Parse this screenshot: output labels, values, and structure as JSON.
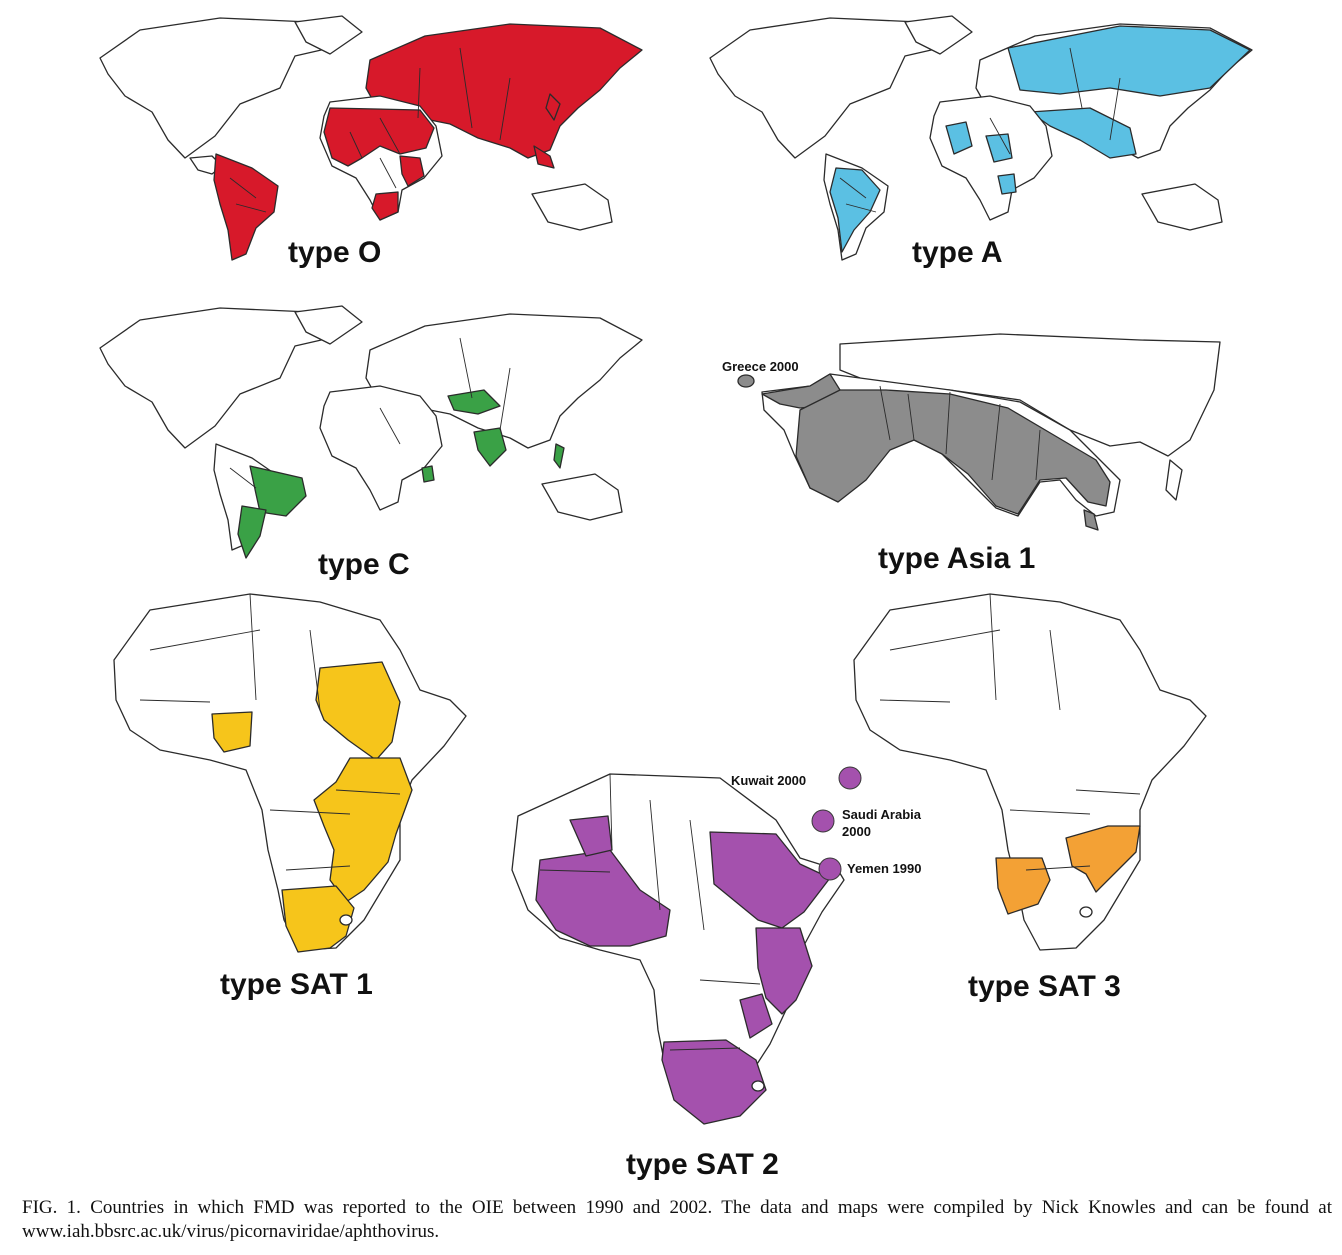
{
  "colors": {
    "type_o": "#d7192a",
    "type_a": "#5bc0e3",
    "type_c": "#3aa146",
    "type_asia1": "#8c8c8c",
    "type_sat1": "#f6c51b",
    "type_sat2": "#a451ad",
    "type_sat3": "#f3a135"
  },
  "maps": {
    "type_o": {
      "title": "type O",
      "extent": "world",
      "fill_key": "type_o"
    },
    "type_a": {
      "title": "type A",
      "extent": "world",
      "fill_key": "type_a"
    },
    "type_c": {
      "title": "type C",
      "extent": "world",
      "fill_key": "type_c"
    },
    "type_asia1": {
      "title": "type Asia 1",
      "extent": "asia",
      "fill_key": "type_asia1",
      "notes": [
        {
          "label": "Greece 2000"
        }
      ]
    },
    "type_sat1": {
      "title": "type SAT 1",
      "extent": "africa",
      "fill_key": "type_sat1"
    },
    "type_sat2": {
      "title": "type SAT 2",
      "extent": "africa",
      "fill_key": "type_sat2",
      "notes": [
        {
          "label": "Kuwait 2000"
        },
        {
          "label": "Saudi Arabia 2000"
        },
        {
          "label": "Yemen 1990"
        }
      ]
    },
    "type_sat3": {
      "title": "type SAT 3",
      "extent": "africa",
      "fill_key": "type_sat3"
    }
  },
  "caption": "FIG. 1. Countries in which FMD was reported to the OIE between 1990 and 2002. The data and maps were compiled by Nick Knowles and can be found at www.iah.bbsrc.ac.uk/virus/picornaviridae/aphthovirus."
}
